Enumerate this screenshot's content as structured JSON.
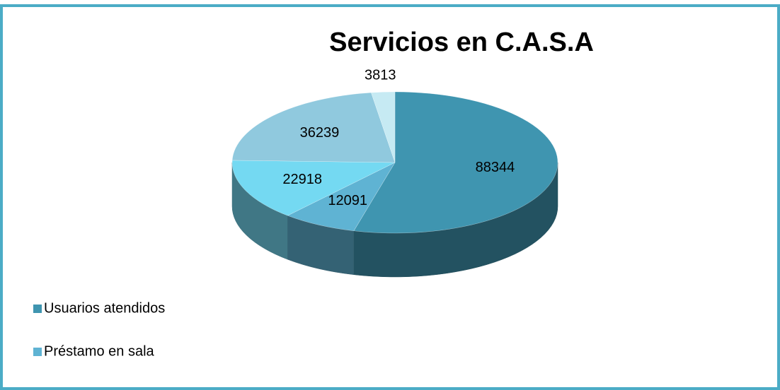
{
  "chart_data": {
    "type": "pie",
    "title": "Servicios en C.A.S.A",
    "categories": [
      "Usuarios atendidos",
      "Préstamo en sala",
      null,
      null,
      null
    ],
    "values": [
      88344,
      12091,
      22918,
      36239,
      3813
    ],
    "colors": [
      "#3f95b0",
      "#5fb3d3",
      "#74d9f2",
      "#90c9de",
      "#c6eaf3"
    ],
    "legend": "left-bottom"
  }
}
